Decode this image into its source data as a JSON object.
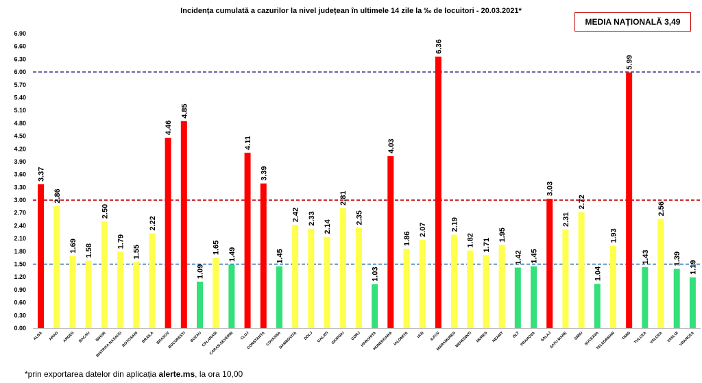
{
  "chart_data": {
    "type": "bar",
    "title": "Incidența cumulată a cazurilor la nivel județean în ultimele 14 zile la ‰ de locuitori - 20.03.2021*",
    "categories": [
      "ALBA",
      "ARAD",
      "ARGES",
      "BACAU",
      "BIHOR",
      "BISTRITA NASAUD",
      "BOTOSANI",
      "BRAILA",
      "BRASOV",
      "BUCURESTI",
      "BUZAU",
      "CALARASI",
      "CARAS-SEVERIN",
      "CLUJ",
      "CONSTANTA",
      "COVASNA",
      "DAMBOVITA",
      "DOLJ",
      "GALATI",
      "GIURGIU",
      "GORJ",
      "HARGHITA",
      "HUNEDOARA",
      "IALOMITA",
      "IASI",
      "ILFOV",
      "MARAMURES",
      "MEHEDINTI",
      "MURES",
      "NEAMT",
      "OLT",
      "PRAHOVA",
      "SALAJ",
      "SATU MARE",
      "SIBIU",
      "SUCEAVA",
      "TELEORMAN",
      "TIMIS",
      "TULCEA",
      "VALCEA",
      "VASLUI",
      "VRANCEA"
    ],
    "values": [
      3.37,
      2.86,
      1.69,
      1.58,
      2.5,
      1.79,
      1.55,
      2.22,
      4.46,
      4.85,
      1.09,
      1.65,
      1.49,
      4.11,
      3.39,
      1.45,
      2.42,
      2.33,
      2.14,
      2.81,
      2.35,
      1.03,
      4.03,
      1.86,
      2.07,
      6.36,
      2.19,
      1.82,
      1.71,
      1.95,
      1.42,
      1.45,
      3.03,
      2.31,
      2.72,
      1.04,
      1.93,
      5.99,
      1.43,
      2.56,
      1.39,
      1.19
    ],
    "data_labels": [
      "3.37",
      "2.86",
      "1.69",
      "1.58",
      "2.50",
      "1.79",
      "1.55",
      "2.22",
      "4.46",
      "4.85",
      "1.09",
      "1.65",
      "1.49",
      "4.11",
      "3.39",
      "1.45",
      "2.42",
      "2.33",
      "2.14",
      "2.81",
      "2.35",
      "1.03",
      "4.03",
      "1.86",
      "2.07",
      "6.36",
      "2.19",
      "1.82",
      "1.71",
      "1.95",
      "1.42",
      "1.45",
      "3.03",
      "2.31",
      "2.72",
      "1.04",
      "1.93",
      "5.99",
      "1.43",
      "2.56",
      "1.39",
      "1.19"
    ],
    "ylim": [
      0,
      6.9
    ],
    "yticks": [
      "0.00",
      "0.30",
      "0.60",
      "0.90",
      "1.20",
      "1.50",
      "1.80",
      "2.10",
      "2.40",
      "2.70",
      "3.00",
      "3.30",
      "3.60",
      "3.90",
      "4.20",
      "4.50",
      "4.80",
      "5.10",
      "5.40",
      "5.70",
      "6.00",
      "6.30",
      "6.60",
      "6.90"
    ],
    "thresholds": [
      {
        "value": 1.5,
        "color": "#2e75b6"
      },
      {
        "value": 3.0,
        "color": "#c00000"
      },
      {
        "value": 6.0,
        "color": "#4b3a8c"
      }
    ],
    "colors": {
      "red": "#ff0000",
      "yellow": "#ffff4d",
      "green": "#33e07a"
    },
    "grid": false,
    "xlabel": "",
    "ylabel": ""
  },
  "media_box": "MEDIA NAȚIONALĂ 3,49",
  "footnote": {
    "prefix": "*prin exportarea datelor din aplicația ",
    "app": "alerte.ms",
    "suffix": ", la ora 10,00"
  }
}
